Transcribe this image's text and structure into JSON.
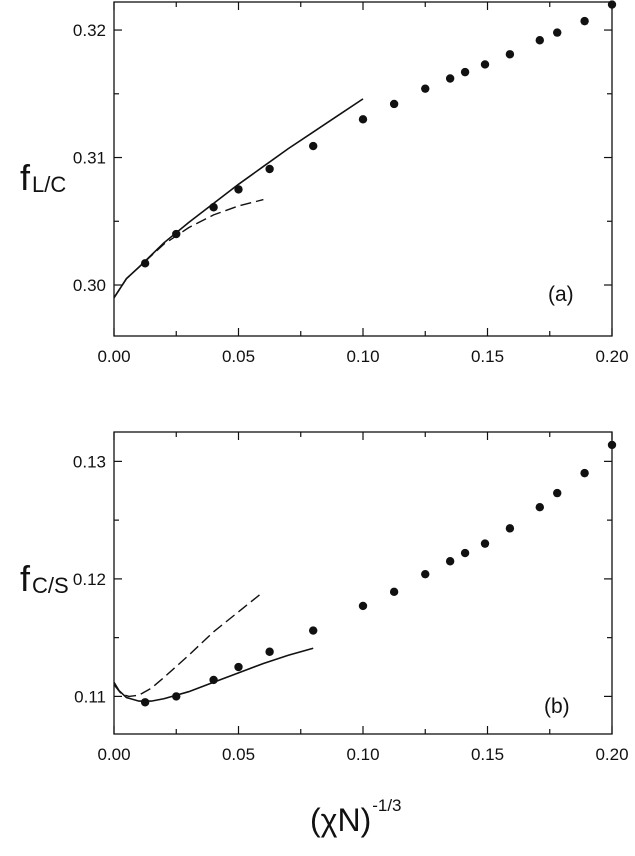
{
  "chart_data": [
    {
      "type": "scatter",
      "panel_label": "(a)",
      "ylabel_main": "f",
      "ylabel_sub": "L/C",
      "xlim": [
        0,
        0.2
      ],
      "ylim": [
        0.296,
        0.3222
      ],
      "xticks": [
        0,
        0.05,
        0.1,
        0.15,
        0.2
      ],
      "xtick_labels": [
        "0.00",
        "0.05",
        "0.10",
        "0.15",
        "0.20"
      ],
      "yticks": [
        0.3,
        0.31,
        0.32
      ],
      "ytick_labels": [
        "0.30",
        "0.31",
        "0.32"
      ],
      "series": [
        {
          "style": "dots",
          "x": [
            0.0125,
            0.025,
            0.04,
            0.05,
            0.0625,
            0.08,
            0.1,
            0.1125,
            0.125,
            0.135,
            0.141,
            0.149,
            0.159,
            0.171,
            0.178,
            0.189,
            0.2
          ],
          "y": [
            0.3017,
            0.304,
            0.3061,
            0.3075,
            0.3091,
            0.3109,
            0.313,
            0.3142,
            0.3154,
            0.3162,
            0.3167,
            0.3173,
            0.3181,
            0.3192,
            0.3198,
            0.3207,
            0.322
          ]
        },
        {
          "style": "solid",
          "x": [
            0,
            0.005,
            0.01,
            0.02,
            0.03,
            0.04,
            0.05,
            0.06,
            0.07,
            0.08,
            0.09,
            0.1
          ],
          "y": [
            0.299,
            0.3005,
            0.3014,
            0.3033,
            0.3049,
            0.3064,
            0.3079,
            0.3093,
            0.3107,
            0.312,
            0.3133,
            0.3146
          ]
        },
        {
          "style": "dashed",
          "x": [
            0,
            0.005,
            0.01,
            0.02,
            0.03,
            0.04,
            0.05,
            0.06
          ],
          "y": [
            0.299,
            0.3005,
            0.3014,
            0.3032,
            0.3045,
            0.3055,
            0.3062,
            0.3067
          ]
        }
      ]
    },
    {
      "type": "scatter",
      "panel_label": "(b)",
      "ylabel_main": "f",
      "ylabel_sub": "C/S",
      "xlim": [
        0,
        0.2
      ],
      "ylim": [
        0.1068,
        0.1325
      ],
      "xticks": [
        0,
        0.05,
        0.1,
        0.15,
        0.2
      ],
      "xtick_labels": [
        "0.00",
        "0.05",
        "0.10",
        "0.15",
        "0.20"
      ],
      "yticks": [
        0.11,
        0.12,
        0.13
      ],
      "ytick_labels": [
        "0.11",
        "0.12",
        "0.13"
      ],
      "series": [
        {
          "style": "dots",
          "x": [
            0.0125,
            0.025,
            0.04,
            0.05,
            0.0625,
            0.08,
            0.1,
            0.1125,
            0.125,
            0.135,
            0.141,
            0.149,
            0.159,
            0.171,
            0.178,
            0.189,
            0.2
          ],
          "y": [
            0.1095,
            0.11,
            0.1114,
            0.1125,
            0.1138,
            0.1156,
            0.1177,
            0.1189,
            0.1204,
            0.1215,
            0.1222,
            0.123,
            0.1243,
            0.1261,
            0.1273,
            0.129,
            0.1314
          ]
        },
        {
          "style": "solid",
          "x": [
            0,
            0.002,
            0.005,
            0.01,
            0.015,
            0.02,
            0.03,
            0.04,
            0.05,
            0.06,
            0.07,
            0.08
          ],
          "y": [
            0.1112,
            0.1105,
            0.1099,
            0.1096,
            0.1096,
            0.1098,
            0.1104,
            0.1112,
            0.112,
            0.1128,
            0.1135,
            0.1141
          ]
        },
        {
          "style": "dashed",
          "x": [
            0,
            0.003,
            0.006,
            0.01,
            0.015,
            0.02,
            0.03,
            0.04,
            0.05,
            0.06
          ],
          "y": [
            0.111,
            0.1102,
            0.11,
            0.1101,
            0.1107,
            0.1116,
            0.1135,
            0.1155,
            0.1172,
            0.1189
          ]
        }
      ]
    }
  ],
  "xlabel_main": "(χN)",
  "xlabel_sup": "-1/3"
}
